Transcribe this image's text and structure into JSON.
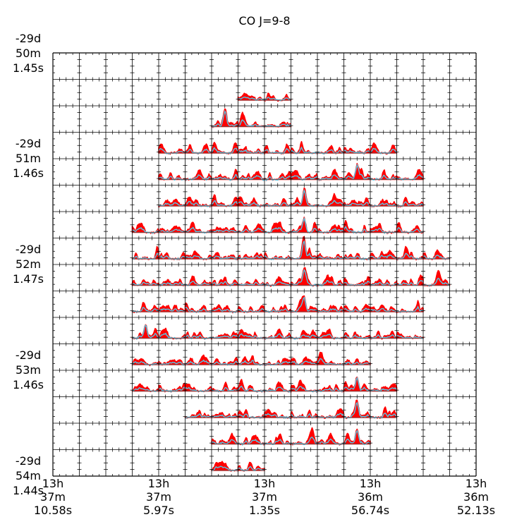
{
  "chart_data": {
    "type": "line",
    "title": "CO J=9-8",
    "xlabel": "",
    "ylabel": "",
    "grid": true,
    "legend": false,
    "colors": {
      "observed": "#ff0000",
      "model": "#55c8e6",
      "baseline": "#555555",
      "grid": "#000000"
    },
    "grid_rows": 16,
    "grid_cols": 16,
    "series": [
      {
        "role": "observed"
      },
      {
        "role": "model"
      }
    ],
    "y_ticks": [
      {
        "lines": [
          "-29d",
          "50m",
          "1.45s"
        ]
      },
      {
        "lines": [
          "-29d",
          "51m",
          "1.46s"
        ]
      },
      {
        "lines": [
          "-29d",
          "52m",
          "1.47s"
        ]
      },
      {
        "lines": [
          "-29d",
          "53m",
          "1.46s"
        ]
      },
      {
        "lines": [
          "-29d",
          "54m",
          "1.44s"
        ]
      }
    ],
    "x_ticks": [
      {
        "lines": [
          "13h",
          "37m",
          "10.58s"
        ]
      },
      {
        "lines": [
          "13h",
          "37m",
          "5.97s"
        ]
      },
      {
        "lines": [
          "13h",
          "37m",
          "1.35s"
        ]
      },
      {
        "lines": [
          "13h",
          "36m",
          "56.74s"
        ]
      },
      {
        "lines": [
          "13h",
          "36m",
          "52.13s"
        ]
      }
    ],
    "spectra_rows": [
      {
        "row": 1,
        "col_start": 7,
        "col_end": 8,
        "peak_col": null
      },
      {
        "row": 2,
        "col_start": 6,
        "col_end": 8,
        "peak_col": 6
      },
      {
        "row": 3,
        "col_start": 4,
        "col_end": 12,
        "peak_col": null
      },
      {
        "row": 4,
        "col_start": 4,
        "col_end": 13,
        "peak_col": 11
      },
      {
        "row": 5,
        "col_start": 4,
        "col_end": 13,
        "peak_col": 9
      },
      {
        "row": 6,
        "col_start": 3,
        "col_end": 13,
        "peak_col": 9
      },
      {
        "row": 7,
        "col_start": 3,
        "col_end": 14,
        "peak_col": 9
      },
      {
        "row": 8,
        "col_start": 3,
        "col_end": 14,
        "peak_col": 9
      },
      {
        "row": 9,
        "col_start": 3,
        "col_end": 13,
        "peak_col": 9
      },
      {
        "row": 10,
        "col_start": 3,
        "col_end": 13,
        "peak_col": 3
      },
      {
        "row": 11,
        "col_start": 3,
        "col_end": 11,
        "peak_col": null
      },
      {
        "row": 12,
        "col_start": 3,
        "col_end": 12,
        "peak_col": 11
      },
      {
        "row": 13,
        "col_start": 5,
        "col_end": 12,
        "peak_col": 11
      },
      {
        "row": 14,
        "col_start": 6,
        "col_end": 11,
        "peak_col": 11
      },
      {
        "row": 15,
        "col_start": 6,
        "col_end": 7,
        "peak_col": null
      }
    ]
  }
}
